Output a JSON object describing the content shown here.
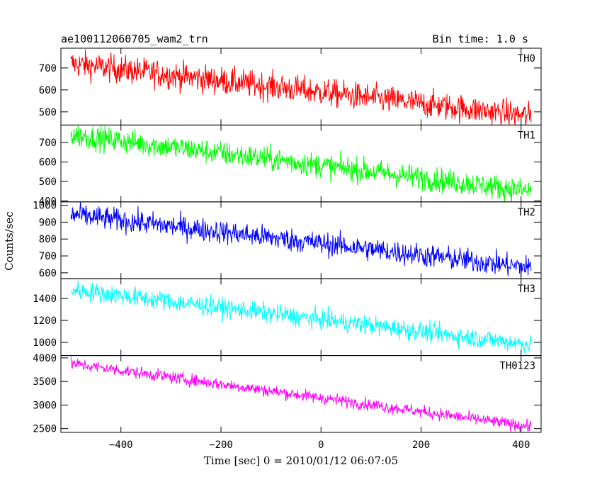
{
  "header": {
    "title": "ae100112060705_wam2_trn",
    "bin_time": "Bin time: 1.0 s"
  },
  "axes": {
    "ylabel": "Counts/sec",
    "xlabel": "Time [sec] 0 = 2010/01/12 06:07:05"
  },
  "chart_data": {
    "type": "line",
    "x_range": [
      -500,
      420
    ],
    "xlim": [
      -520,
      440
    ],
    "x_ticks": [
      -400,
      -200,
      0,
      200,
      400
    ],
    "x_tick_labels": [
      "−400",
      "−200",
      "0",
      "200",
      "400"
    ],
    "grid": false,
    "panels": [
      {
        "name": "TH0",
        "color": "#ff0000",
        "ylim": [
          440,
          790
        ],
        "yticks": [
          500,
          600,
          700
        ],
        "start": 720,
        "end": 480,
        "noise": 32
      },
      {
        "name": "TH1",
        "color": "#00ff00",
        "ylim": [
          395,
          790
        ],
        "yticks": [
          400,
          500,
          600,
          700
        ],
        "start": 740,
        "end": 450,
        "noise": 32
      },
      {
        "name": "TH2",
        "color": "#0000ff",
        "ylim": [
          565,
          1020
        ],
        "yticks": [
          600,
          700,
          800,
          900,
          1000
        ],
        "start": 945,
        "end": 630,
        "noise": 35
      },
      {
        "name": "TH3",
        "color": "#00ffff",
        "ylim": [
          880,
          1580
        ],
        "yticks": [
          1000,
          1200,
          1400
        ],
        "start": 1480,
        "end": 980,
        "noise": 45
      },
      {
        "name": "TH0123",
        "color": "#ff00ff",
        "ylim": [
          2420,
          4050
        ],
        "yticks": [
          2500,
          3000,
          3500,
          4000
        ],
        "start": 3880,
        "end": 2540,
        "noise": 65
      }
    ]
  }
}
